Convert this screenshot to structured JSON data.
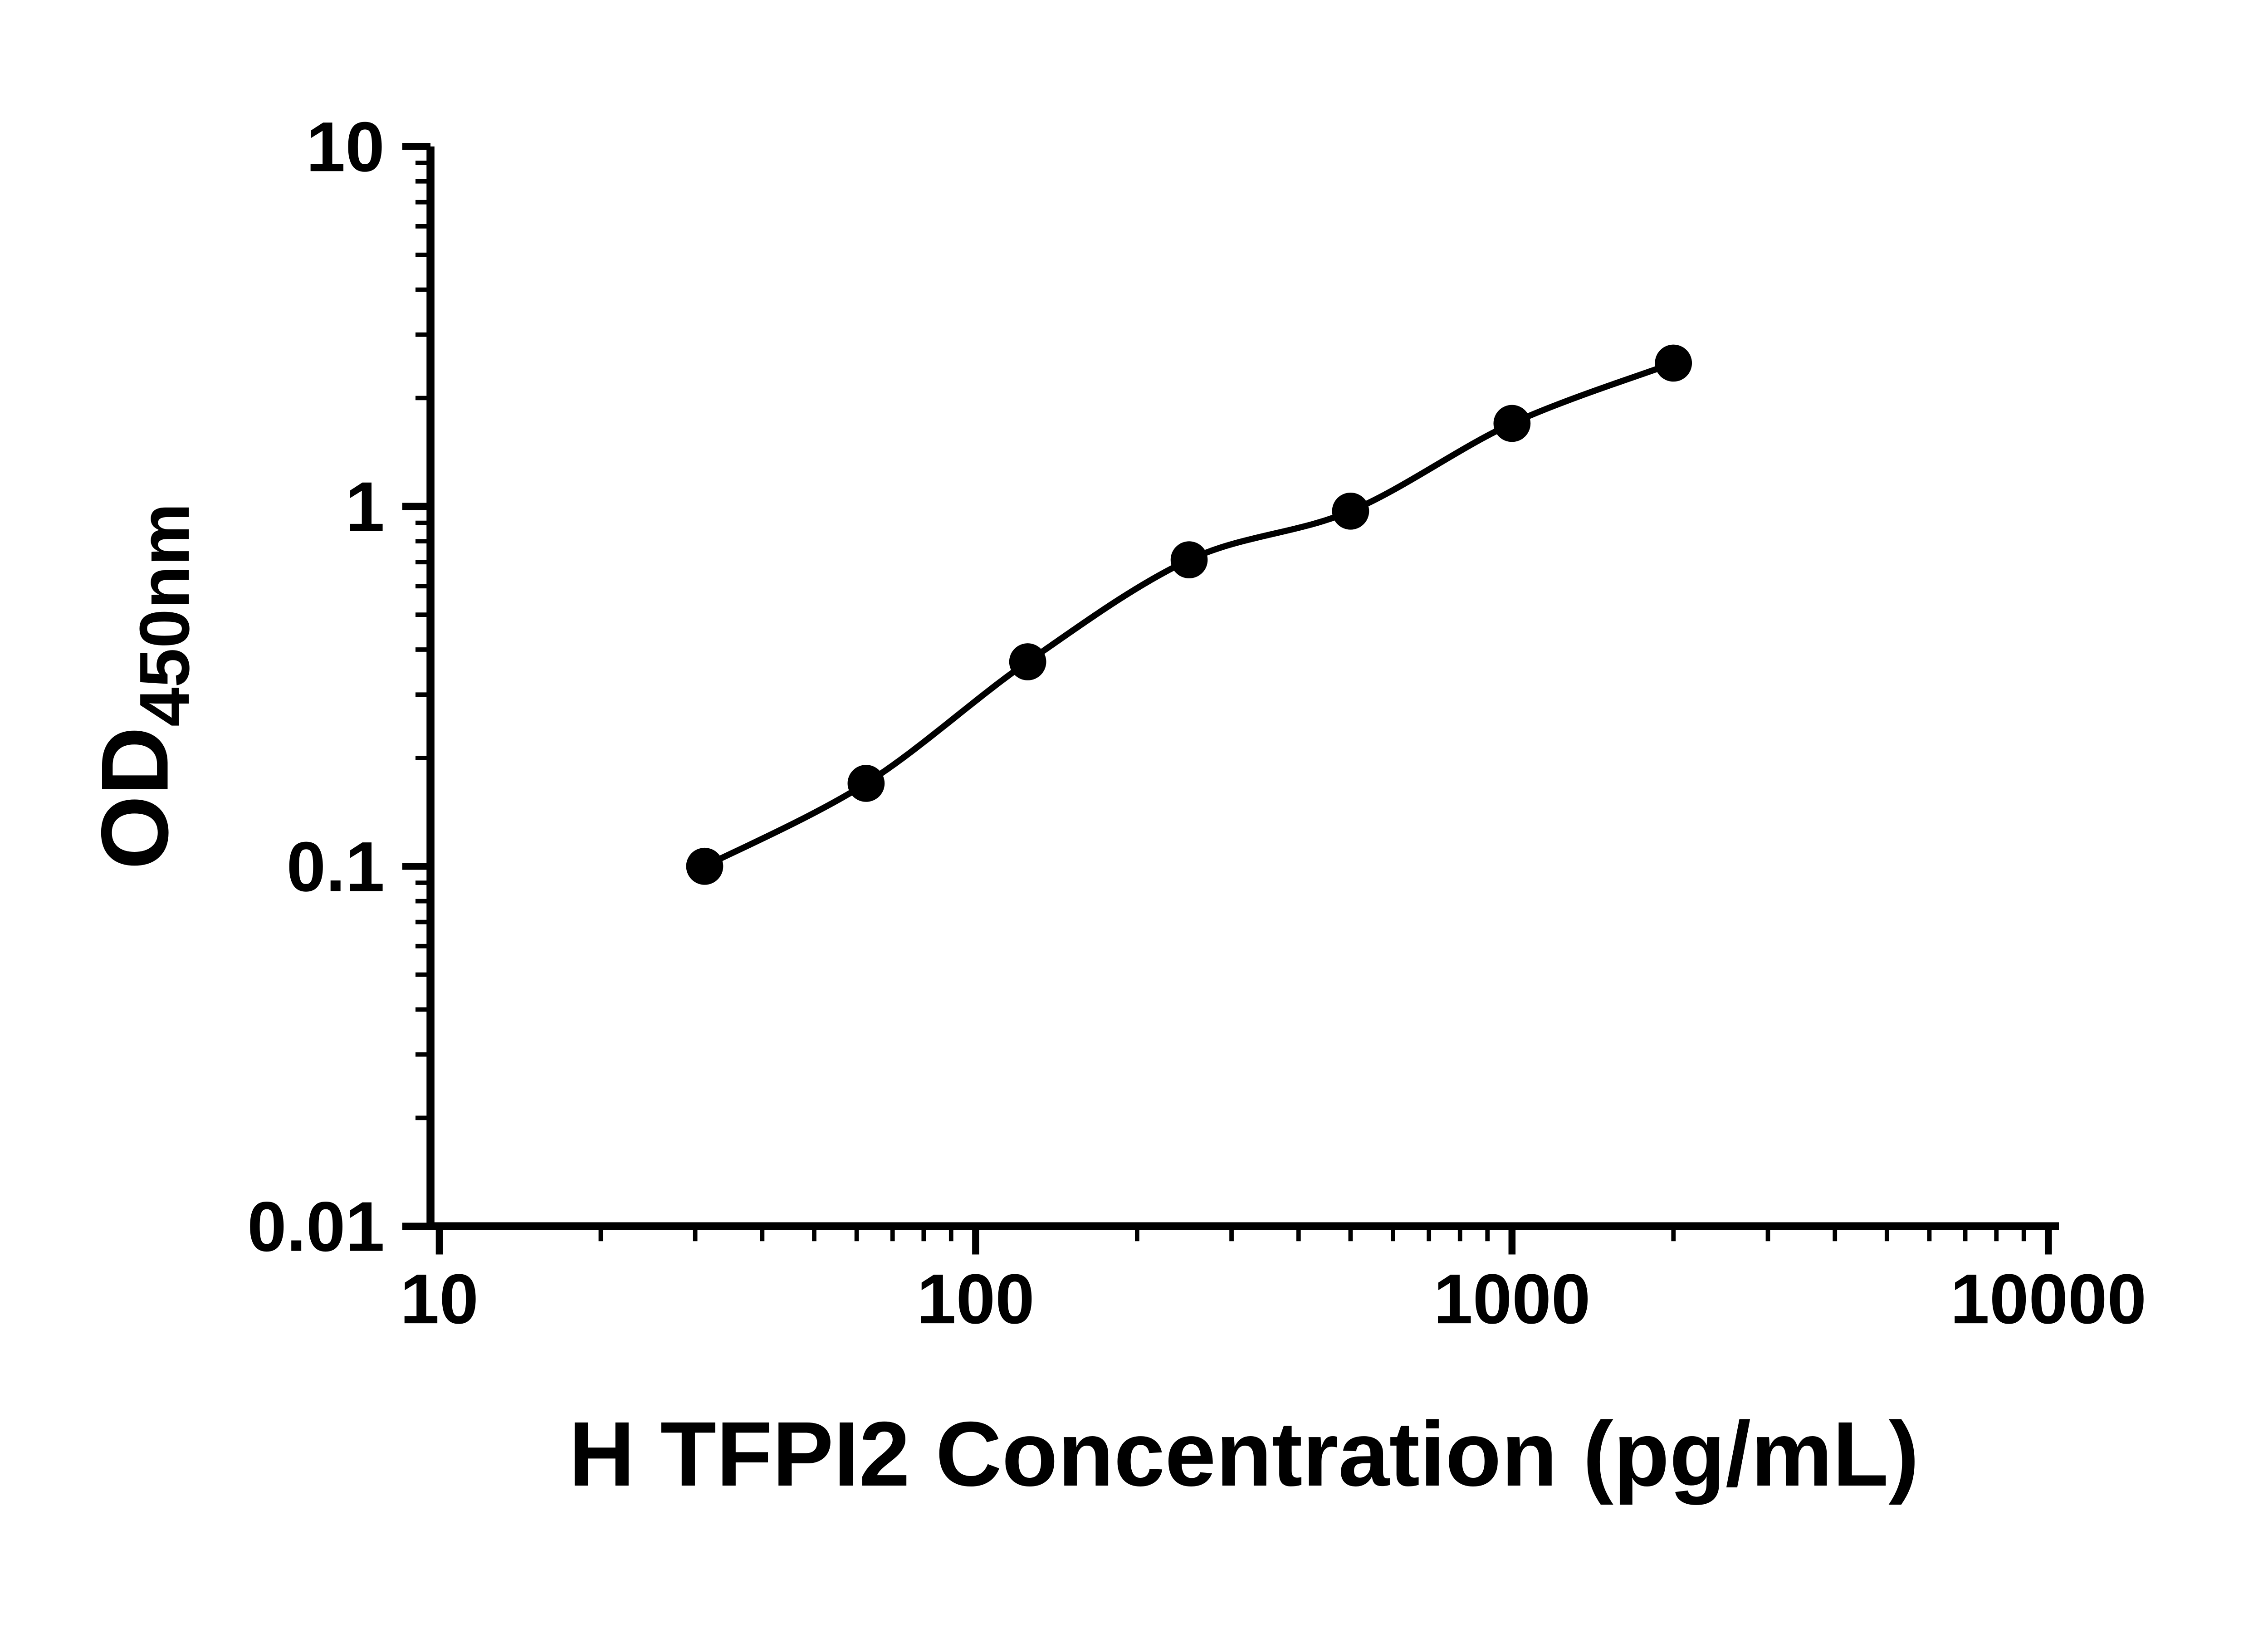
{
  "chart_data": {
    "type": "scatter",
    "xlabel": "H TFPI2 Concentration (pg/mL)",
    "ylabel": "OD450nm",
    "ylabel_main": "OD",
    "ylabel_sub": "450nm",
    "x_scale": "log10",
    "y_scale": "log10",
    "xlim": [
      10,
      10000
    ],
    "ylim": [
      0.01,
      10
    ],
    "x_ticks": [
      10,
      100,
      1000,
      10000
    ],
    "x_tick_labels": [
      "10",
      "100",
      "1000",
      "10000"
    ],
    "y_ticks": [
      0.01,
      0.1,
      1,
      10
    ],
    "y_tick_labels": [
      "0.01",
      "0.1",
      "1",
      "10"
    ],
    "grid": false,
    "legend": "none",
    "series": [
      {
        "marker": "filled-circle",
        "marker_color": "#000000",
        "line_color": "#000000",
        "fit": "smooth-curve",
        "points": [
          {
            "x": 31.25,
            "y": 0.1
          },
          {
            "x": 62.5,
            "y": 0.17
          },
          {
            "x": 125,
            "y": 0.37
          },
          {
            "x": 250,
            "y": 0.71
          },
          {
            "x": 500,
            "y": 0.97
          },
          {
            "x": 1000,
            "y": 1.7
          },
          {
            "x": 2000,
            "y": 2.5
          }
        ]
      }
    ]
  },
  "colors": {
    "foreground": "#000000",
    "background": "#ffffff"
  }
}
